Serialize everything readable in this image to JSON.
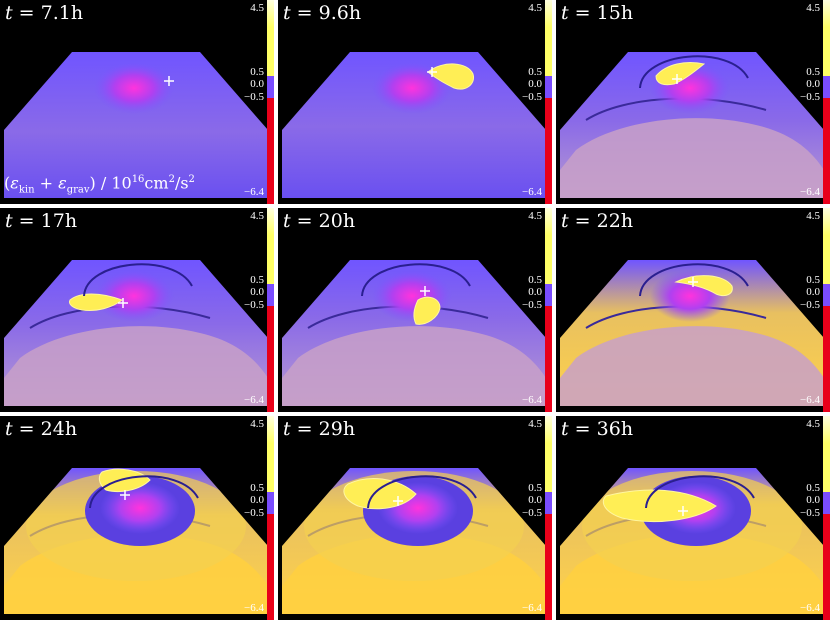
{
  "figure": {
    "quantity_label": {
      "open": "(",
      "eps1": "ε",
      "sub1": "kin",
      "plus": " + ",
      "eps2": "ε",
      "sub2": "grav",
      "rest": ") / 10",
      "exp": "16",
      "unit": "cm",
      "unit_exp": "2",
      "tail": "/s",
      "tail_exp": "2"
    },
    "colorbar": {
      "ticks": [
        "4.5",
        "0.5",
        "0.0",
        "−0.5",
        "−6.4"
      ],
      "colors": {
        "positive": "#ffff66",
        "zero_band": "#7a4dff",
        "negative": "#e8001a"
      }
    },
    "time_var": "t",
    "eq": " = ",
    "panels": [
      {
        "time": "7.1h",
        "stage": 0
      },
      {
        "time": "9.6h",
        "stage": 1
      },
      {
        "time": "15h",
        "stage": 2
      },
      {
        "time": "17h",
        "stage": 3
      },
      {
        "time": "20h",
        "stage": 4
      },
      {
        "time": "22h",
        "stage": 5
      },
      {
        "time": "24h",
        "stage": 6
      },
      {
        "time": "29h",
        "stage": 7
      },
      {
        "time": "36h",
        "stage": 8
      }
    ]
  }
}
